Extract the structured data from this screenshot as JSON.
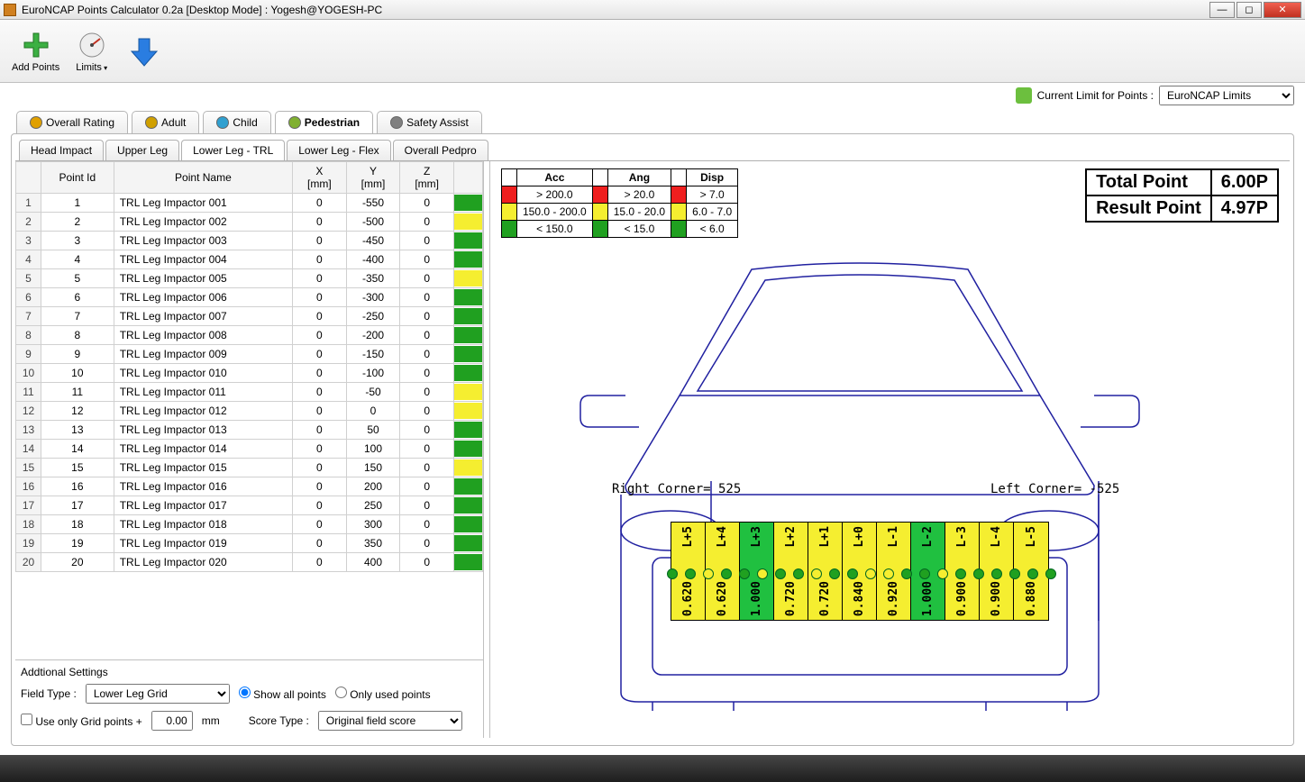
{
  "window": {
    "title": "EuroNCAP Points Calculator 0.2a [Desktop Mode] : Yogesh@YOGESH-PC"
  },
  "toolbar": {
    "add_points": "Add Points",
    "limits": "Limits"
  },
  "limit_row": {
    "label": "Current Limit for Points :",
    "value": "EuroNCAP Limits"
  },
  "main_tabs": [
    {
      "label": "Overall Rating",
      "active": false
    },
    {
      "label": "Adult",
      "active": false
    },
    {
      "label": "Child",
      "active": false
    },
    {
      "label": "Pedestrian",
      "active": true
    },
    {
      "label": "Safety Assist",
      "active": false
    }
  ],
  "sub_tabs": [
    {
      "label": "Head Impact",
      "active": false
    },
    {
      "label": "Upper Leg",
      "active": false
    },
    {
      "label": "Lower Leg - TRL",
      "active": true
    },
    {
      "label": "Lower Leg - Flex",
      "active": false
    },
    {
      "label": "Overall Pedpro",
      "active": false
    }
  ],
  "table": {
    "columns": [
      "Point Id",
      "Point Name",
      "X [mm]",
      "Y [mm]",
      "Z [mm]"
    ],
    "rows": [
      {
        "n": 1,
        "id": "1",
        "name": "TRL Leg Impactor 001",
        "x": "0",
        "y": "-550",
        "z": "0",
        "c": "#20a020"
      },
      {
        "n": 2,
        "id": "2",
        "name": "TRL Leg Impactor 002",
        "x": "0",
        "y": "-500",
        "z": "0",
        "c": "#f5ee30"
      },
      {
        "n": 3,
        "id": "3",
        "name": "TRL Leg Impactor 003",
        "x": "0",
        "y": "-450",
        "z": "0",
        "c": "#20a020"
      },
      {
        "n": 4,
        "id": "4",
        "name": "TRL Leg Impactor 004",
        "x": "0",
        "y": "-400",
        "z": "0",
        "c": "#20a020"
      },
      {
        "n": 5,
        "id": "5",
        "name": "TRL Leg Impactor 005",
        "x": "0",
        "y": "-350",
        "z": "0",
        "c": "#f5ee30"
      },
      {
        "n": 6,
        "id": "6",
        "name": "TRL Leg Impactor 006",
        "x": "0",
        "y": "-300",
        "z": "0",
        "c": "#20a020"
      },
      {
        "n": 7,
        "id": "7",
        "name": "TRL Leg Impactor 007",
        "x": "0",
        "y": "-250",
        "z": "0",
        "c": "#20a020"
      },
      {
        "n": 8,
        "id": "8",
        "name": "TRL Leg Impactor 008",
        "x": "0",
        "y": "-200",
        "z": "0",
        "c": "#20a020"
      },
      {
        "n": 9,
        "id": "9",
        "name": "TRL Leg Impactor 009",
        "x": "0",
        "y": "-150",
        "z": "0",
        "c": "#20a020"
      },
      {
        "n": 10,
        "id": "10",
        "name": "TRL Leg Impactor 010",
        "x": "0",
        "y": "-100",
        "z": "0",
        "c": "#20a020"
      },
      {
        "n": 11,
        "id": "11",
        "name": "TRL Leg Impactor 011",
        "x": "0",
        "y": "-50",
        "z": "0",
        "c": "#f5ee30"
      },
      {
        "n": 12,
        "id": "12",
        "name": "TRL Leg Impactor 012",
        "x": "0",
        "y": "0",
        "z": "0",
        "c": "#f5ee30"
      },
      {
        "n": 13,
        "id": "13",
        "name": "TRL Leg Impactor 013",
        "x": "0",
        "y": "50",
        "z": "0",
        "c": "#20a020"
      },
      {
        "n": 14,
        "id": "14",
        "name": "TRL Leg Impactor 014",
        "x": "0",
        "y": "100",
        "z": "0",
        "c": "#20a020"
      },
      {
        "n": 15,
        "id": "15",
        "name": "TRL Leg Impactor 015",
        "x": "0",
        "y": "150",
        "z": "0",
        "c": "#f5ee30"
      },
      {
        "n": 16,
        "id": "16",
        "name": "TRL Leg Impactor 016",
        "x": "0",
        "y": "200",
        "z": "0",
        "c": "#20a020"
      },
      {
        "n": 17,
        "id": "17",
        "name": "TRL Leg Impactor 017",
        "x": "0",
        "y": "250",
        "z": "0",
        "c": "#20a020"
      },
      {
        "n": 18,
        "id": "18",
        "name": "TRL Leg Impactor 018",
        "x": "0",
        "y": "300",
        "z": "0",
        "c": "#20a020"
      },
      {
        "n": 19,
        "id": "19",
        "name": "TRL Leg Impactor 019",
        "x": "0",
        "y": "350",
        "z": "0",
        "c": "#20a020"
      },
      {
        "n": 20,
        "id": "20",
        "name": "TRL Leg Impactor 020",
        "x": "0",
        "y": "400",
        "z": "0",
        "c": "#20a020"
      }
    ]
  },
  "settings": {
    "heading": "Addtional Settings",
    "field_type_label": "Field Type  :",
    "field_type_value": "Lower Leg Grid",
    "show_all": "Show all points",
    "only_used": "Only used points",
    "use_grid": "Use only Grid points +",
    "grid_val": "0.00",
    "grid_unit": "mm",
    "score_type_label": "Score Type :",
    "score_type_value": "Original field score"
  },
  "thresholds": {
    "headers": [
      "Acc",
      "Ang",
      "Disp"
    ],
    "rows": [
      {
        "color": "#ef1f1f",
        "acc": "> 200.0",
        "ang": "> 20.0",
        "disp": "> 7.0"
      },
      {
        "color": "#f5ee30",
        "acc": "150.0 - 200.0",
        "ang": "15.0 - 20.0",
        "disp": "6.0 - 7.0"
      },
      {
        "color": "#20a020",
        "acc": "< 150.0",
        "ang": "< 15.0",
        "disp": "< 6.0"
      }
    ]
  },
  "results": {
    "total_label": "Total Point",
    "total_value": "6.00P",
    "result_label": "Result Point",
    "result_value": "4.97P"
  },
  "diagram": {
    "right_corner": "Right Corner= 525",
    "left_corner": "Left Corner= -525",
    "outline_color": "#2020a0",
    "zones": [
      {
        "label": "L+5",
        "value": "0.620",
        "color": "#f5ee30"
      },
      {
        "label": "L+4",
        "value": "0.620",
        "color": "#f5ee30"
      },
      {
        "label": "L+3",
        "value": "1.000",
        "color": "#20c040"
      },
      {
        "label": "L+2",
        "value": "0.720",
        "color": "#f5ee30"
      },
      {
        "label": "L+1",
        "value": "0.720",
        "color": "#f5ee30"
      },
      {
        "label": "L+0",
        "value": "0.840",
        "color": "#f5ee30"
      },
      {
        "label": "L-1",
        "value": "0.920",
        "color": "#f5ee30"
      },
      {
        "label": "L-2",
        "value": "1.000",
        "color": "#20c040"
      },
      {
        "label": "L-3",
        "value": "0.900",
        "color": "#f5ee30"
      },
      {
        "label": "L-4",
        "value": "0.900",
        "color": "#f5ee30"
      },
      {
        "label": "L-5",
        "value": "0.880",
        "color": "#f5ee30"
      }
    ],
    "dots": [
      "#20a020",
      "#20a020",
      "#f5ee30",
      "#20a020",
      "#20a020",
      "#f5ee30",
      "#20a020",
      "#20a020",
      "#f5ee30",
      "#20a020",
      "#20a020",
      "#f5ee30",
      "#f5ee30",
      "#20a020",
      "#20a020",
      "#f5ee30",
      "#20a020",
      "#20a020",
      "#20a020",
      "#20a020",
      "#20a020",
      "#20a020"
    ]
  }
}
